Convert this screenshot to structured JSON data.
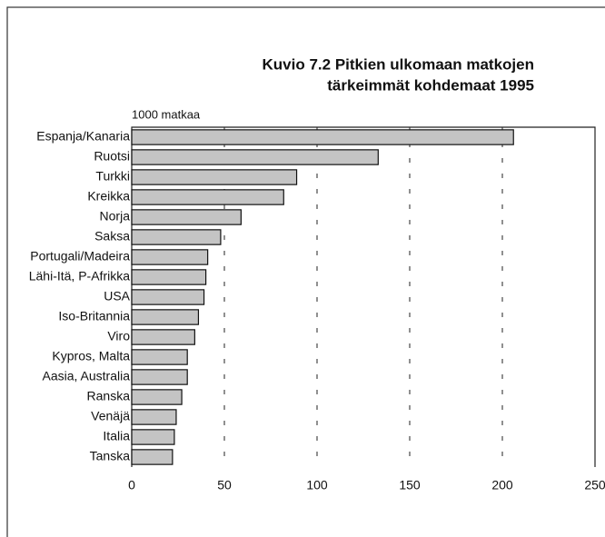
{
  "chart_data": {
    "type": "hbar",
    "title": [
      "Kuvio 7.2  Pitkien ulkomaan matkojen",
      "tärkeimmät kohdemaat 1995"
    ],
    "xlabel": "1000 matkaa",
    "categories": [
      "Espanja/Kanaria",
      "Ruotsi",
      "Turkki",
      "Kreikka",
      "Norja",
      "Saksa",
      "Portugali/Madeira",
      "Lähi-Itä, P-Afrikka",
      "USA",
      "Iso-Britannia",
      "Viro",
      "Kypros, Malta",
      "Aasia, Australia",
      "Ranska",
      "Venäjä",
      "Italia",
      "Tanska"
    ],
    "values": [
      206,
      133,
      89,
      82,
      59,
      48,
      41,
      40,
      39,
      36,
      34,
      30,
      30,
      27,
      24,
      23,
      22
    ],
    "color": "#c4c4c4",
    "xlim": [
      0,
      250
    ],
    "xticks": [
      0,
      50,
      100,
      150,
      200,
      250
    ],
    "grid": true
  }
}
